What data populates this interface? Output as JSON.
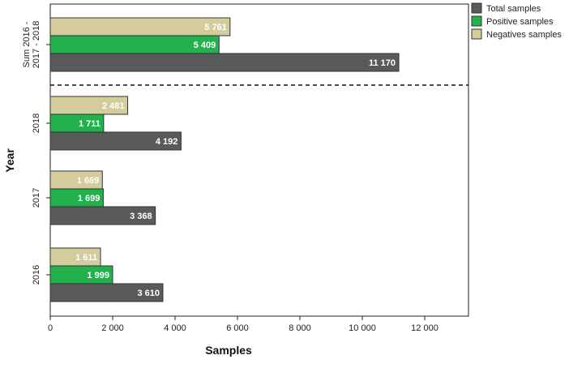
{
  "chart_data": {
    "type": "bar",
    "orientation": "horizontal",
    "xlabel": "Samples",
    "ylabel": "Year",
    "xlim": [
      0,
      13200
    ],
    "xticks": [
      0,
      2000,
      4000,
      6000,
      8000,
      10000,
      12000
    ],
    "xtick_labels": [
      "0",
      "2 000",
      "4 000",
      "6 000",
      "8 000",
      "10 000",
      "12 000"
    ],
    "categories": [
      "Sum 2016 - 2017 - 2018",
      "2018",
      "2017",
      "2016"
    ],
    "category_label_lines": [
      [
        "Sum  2016 -",
        "2017 - 2018"
      ],
      [
        "2018"
      ],
      [
        "2017"
      ],
      [
        "2016"
      ]
    ],
    "separator_after_category": "Sum 2016 - 2017 - 2018",
    "legend_position": "top-right",
    "series": [
      {
        "name": "Total samples",
        "color": "#5a5a5a",
        "values": [
          11170,
          4192,
          3368,
          3610
        ],
        "value_labels": [
          "11 170",
          "4 192",
          "3 368",
          "3 610"
        ]
      },
      {
        "name": "Positive samples",
        "color": "#22b14c",
        "values": [
          5409,
          1711,
          1699,
          1999
        ],
        "value_labels": [
          "5 409",
          "1 711",
          "1 699",
          "1 999"
        ]
      },
      {
        "name": "Negatives samples",
        "color": "#d4cc9c",
        "values": [
          5761,
          2481,
          1669,
          1611
        ],
        "value_labels": [
          "5 761",
          "2 481",
          "1 669",
          "1 611"
        ]
      }
    ]
  }
}
